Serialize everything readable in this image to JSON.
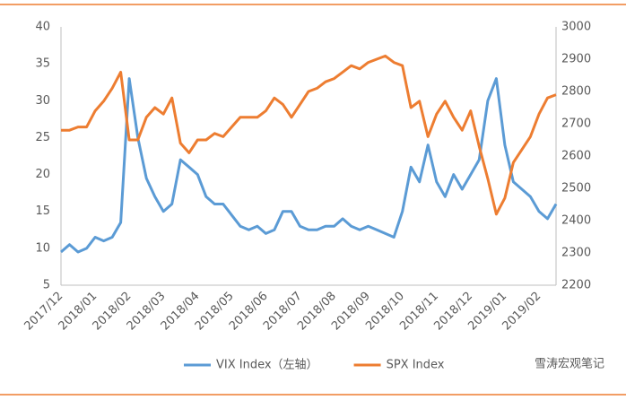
{
  "chart_data": {
    "type": "line",
    "categories": [
      "2017/12",
      null,
      null,
      null,
      "2018/01",
      null,
      null,
      null,
      "2018/02",
      null,
      null,
      null,
      "2018/03",
      null,
      null,
      null,
      "2018/04",
      null,
      null,
      null,
      "2018/05",
      null,
      null,
      null,
      "2018/06",
      null,
      null,
      null,
      "2018/07",
      null,
      null,
      null,
      "2018/08",
      null,
      null,
      null,
      "2018/09",
      null,
      null,
      null,
      "2018/10",
      null,
      null,
      null,
      "2018/11",
      null,
      null,
      null,
      "2018/12",
      null,
      null,
      null,
      "2019/01",
      null,
      null,
      null,
      "2019/02",
      null,
      null
    ],
    "series": [
      {
        "name": "VIX Index（左轴）",
        "color": "#5b9bd5",
        "axis": "y",
        "values": [
          9.5,
          10.5,
          9.5,
          10,
          11.5,
          11,
          11.5,
          13.5,
          33,
          25,
          19.5,
          17,
          15,
          16,
          22,
          21,
          20,
          17,
          16,
          16,
          14.5,
          13,
          12.5,
          13,
          12,
          12.5,
          15,
          15,
          13,
          12.5,
          12.5,
          13,
          13,
          14,
          13,
          12.5,
          13,
          12.5,
          12,
          11.5,
          15,
          21,
          19,
          24,
          19,
          17,
          20,
          18,
          20,
          22,
          30,
          33,
          24,
          19,
          18,
          17,
          15,
          14,
          16
        ]
      },
      {
        "name": "SPX Index",
        "color": "#ed7d31",
        "axis": "y2",
        "values": [
          2680,
          2680,
          2690,
          2690,
          2740,
          2770,
          2810,
          2860,
          2650,
          2650,
          2720,
          2750,
          2730,
          2780,
          2640,
          2610,
          2650,
          2650,
          2670,
          2660,
          2690,
          2720,
          2720,
          2720,
          2740,
          2780,
          2760,
          2720,
          2760,
          2800,
          2810,
          2830,
          2840,
          2860,
          2880,
          2870,
          2890,
          2900,
          2910,
          2890,
          2880,
          2750,
          2770,
          2660,
          2730,
          2770,
          2720,
          2680,
          2740,
          2630,
          2530,
          2420,
          2470,
          2580,
          2620,
          2660,
          2730,
          2780,
          2790
        ]
      }
    ],
    "ylim": [
      5,
      40
    ],
    "yticks": [
      5,
      10,
      15,
      20,
      25,
      30,
      35,
      40
    ],
    "y2lim": [
      2200,
      3000
    ],
    "y2ticks": [
      2200,
      2300,
      2400,
      2500,
      2600,
      2700,
      2800,
      2900,
      3000
    ],
    "legend": "bottom",
    "watermark": "雪涛宏观笔记"
  }
}
